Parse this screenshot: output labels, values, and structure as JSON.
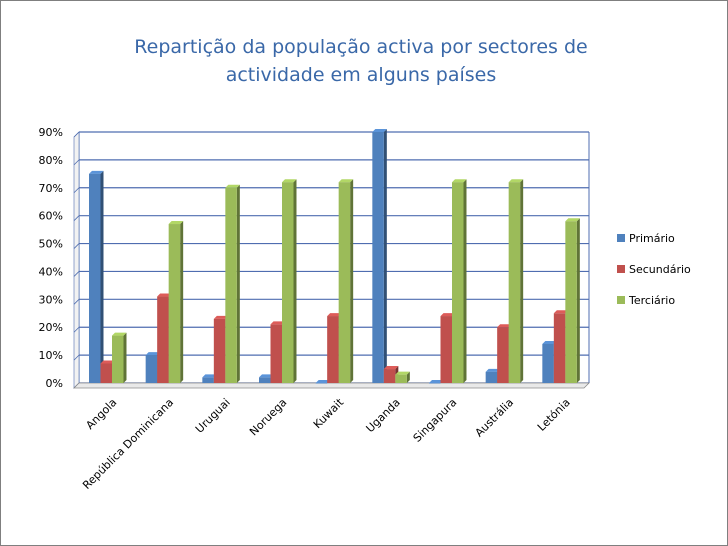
{
  "chart_data": {
    "type": "bar",
    "title": "Repartição da população activa por sectores de actividade em alguns países",
    "title_lines": [
      "Repartição da população activa por sectores de",
      "actividade em alguns países"
    ],
    "categories": [
      "Angola",
      "República Dominicana",
      "Uruguai",
      "Noruega",
      "Kuwait",
      "Uganda",
      "Singapura",
      "Austrália",
      "Letónia"
    ],
    "series": [
      {
        "name": "Primário",
        "color": "#4f81bd",
        "values": [
          75,
          10,
          2,
          2,
          0,
          90,
          0,
          4,
          14
        ]
      },
      {
        "name": "Secundário",
        "color": "#c0504d",
        "values": [
          7,
          31,
          23,
          21,
          24,
          5,
          24,
          20,
          25
        ]
      },
      {
        "name": "Terciário",
        "color": "#9bbb59",
        "values": [
          17,
          57,
          70,
          72,
          72,
          3,
          72,
          72,
          58
        ]
      }
    ],
    "y_ticks": [
      "0%",
      "10%",
      "20%",
      "30%",
      "40%",
      "50%",
      "60%",
      "70%",
      "80%",
      "90%"
    ],
    "ylim": [
      0,
      90
    ],
    "xlabel": "",
    "ylabel": "",
    "grid": true,
    "legend_position": "right",
    "gridline_color": "#4f6db0"
  }
}
